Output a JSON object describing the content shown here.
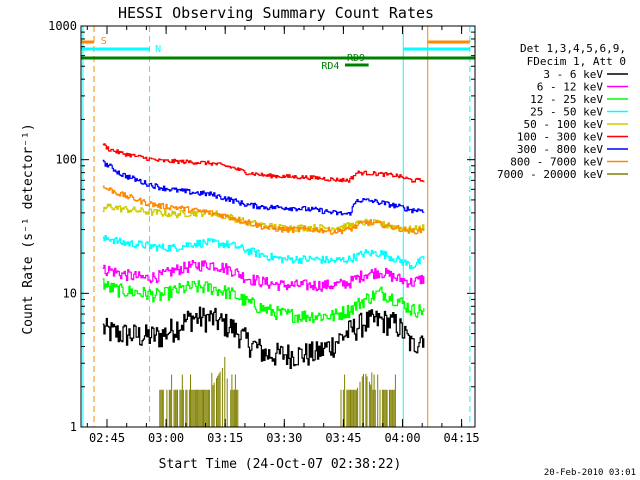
{
  "chart_data": {
    "type": "line",
    "title": "HESSI Observing Summary Count Rates",
    "xlabel": "Start Time (24-Oct-07 02:38:22)",
    "ylabel": "Count Rate (s⁻¹ detector⁻¹)",
    "yscale": "log",
    "ylim": [
      1,
      1000
    ],
    "xlim_minutes": [
      0,
      100
    ],
    "x_ticks": [
      {
        "label": "02:45",
        "minute": 6.6
      },
      {
        "label": "03:00",
        "minute": 21.6
      },
      {
        "label": "03:15",
        "minute": 36.6
      },
      {
        "label": "03:30",
        "minute": 51.6
      },
      {
        "label": "03:45",
        "minute": 66.6
      },
      {
        "label": "04:00",
        "minute": 81.6
      },
      {
        "label": "04:15",
        "minute": 96.6
      }
    ],
    "y_ticks": [
      "1",
      "10",
      "100",
      "1000"
    ],
    "legend_header": [
      "Det 1,3,4,5,6,9,",
      "FDecim 1, Att 0"
    ],
    "legend_position": "right",
    "series": [
      {
        "name": "3 - 6 keV",
        "color": "#000000",
        "x": [
          5.5,
          7,
          10,
          16,
          20,
          24,
          28,
          33,
          38,
          42,
          47,
          51,
          56,
          60,
          64,
          68,
          72,
          76,
          80,
          84,
          87
        ],
        "y": [
          5.5,
          5.2,
          5.0,
          4.8,
          4.8,
          5.6,
          6.6,
          6.5,
          5.6,
          4.4,
          3.5,
          3.5,
          3.5,
          3.6,
          4.2,
          5.2,
          6.1,
          6.3,
          5.9,
          4.0,
          5.0
        ]
      },
      {
        "name": "6 - 12 keV",
        "color": "#ff00ff",
        "x": [
          5.5,
          7,
          10,
          16,
          20,
          24,
          28,
          33,
          38,
          42,
          47,
          51,
          56,
          60,
          64,
          68,
          72,
          76,
          80,
          84,
          87
        ],
        "y": [
          15,
          15,
          14,
          13,
          13.5,
          15,
          16,
          16.5,
          15,
          13,
          12,
          11.5,
          11.5,
          11.5,
          11.5,
          12,
          14,
          14.5,
          13,
          12,
          13
        ]
      },
      {
        "name": "12 - 25 keV",
        "color": "#00ff00",
        "x": [
          5.5,
          7,
          10,
          16,
          20,
          24,
          28,
          33,
          38,
          42,
          47,
          51,
          56,
          60,
          64,
          68,
          72,
          76,
          80,
          84,
          87
        ],
        "y": [
          12,
          11,
          10.5,
          10,
          9.6,
          10.5,
          11.2,
          11,
          10,
          8.6,
          7.5,
          7.0,
          6.8,
          6.8,
          6.8,
          7.5,
          9.0,
          10.2,
          9.0,
          7.5,
          7.5
        ]
      },
      {
        "name": "25 - 50 keV",
        "color": "#00ffff",
        "x": [
          5.5,
          7,
          10,
          16,
          20,
          24,
          28,
          33,
          38,
          42,
          47,
          51,
          56,
          60,
          64,
          68,
          72,
          76,
          80,
          84,
          87
        ],
        "y": [
          25,
          26,
          24,
          23,
          22,
          22,
          23.5,
          24,
          23,
          21,
          19,
          18,
          18,
          18,
          17.5,
          18,
          20,
          20,
          18,
          16,
          18
        ]
      },
      {
        "name": "50 - 100 keV",
        "color": "#cccc00",
        "x": [
          5.5,
          7,
          10,
          16,
          20,
          24,
          28,
          33,
          38,
          42,
          47,
          51,
          56,
          60,
          64,
          68,
          72,
          76,
          80,
          84,
          87
        ],
        "y": [
          42,
          45,
          43,
          41,
          40,
          39,
          40,
          40,
          37,
          34,
          32,
          31,
          31,
          31,
          31,
          32,
          34,
          33,
          31,
          30,
          31
        ]
      },
      {
        "name": "100 - 300 keV",
        "color": "#ff0000",
        "x": [
          5.5,
          7,
          10,
          16,
          20,
          24,
          28,
          33,
          38,
          42,
          47,
          51,
          56,
          60,
          64,
          68,
          70,
          74,
          80,
          84,
          87
        ],
        "y": [
          130,
          120,
          112,
          103,
          98,
          97,
          96,
          94,
          88,
          80,
          76,
          75,
          74,
          73,
          71,
          70,
          80,
          79,
          76,
          70,
          70
        ]
      },
      {
        "name": "300 - 800 keV",
        "color": "#0000ff",
        "x": [
          5.5,
          7,
          10,
          16,
          20,
          24,
          28,
          33,
          38,
          42,
          47,
          51,
          56,
          60,
          64,
          68,
          70,
          74,
          80,
          84,
          87
        ],
        "y": [
          95,
          90,
          78,
          67,
          62,
          59,
          57,
          55,
          50,
          46,
          44,
          44,
          43,
          42,
          40,
          39,
          50,
          49,
          45,
          42,
          42
        ]
      },
      {
        "name": "800 - 7000 keV",
        "color": "#ff8800",
        "x": [
          5.5,
          7,
          10,
          16,
          20,
          24,
          28,
          33,
          38,
          42,
          47,
          51,
          56,
          60,
          64,
          68,
          72,
          76,
          80,
          84,
          87
        ],
        "y": [
          62,
          60,
          55,
          48,
          45,
          44,
          42,
          40,
          37,
          34,
          31,
          30,
          30,
          30,
          29,
          30,
          34,
          33,
          31,
          29,
          30
        ]
      },
      {
        "name": "7000 - 20000 keV",
        "color": "#808000",
        "x": [
          20,
          24,
          28,
          33,
          36,
          38,
          40,
          66,
          68,
          70,
          72,
          74,
          76,
          78,
          80
        ],
        "y": [
          1.9,
          1.9,
          1.9,
          1.9,
          2.8,
          1.9,
          1.9,
          1.9,
          1.9,
          1.9,
          2.6,
          1.9,
          1.9,
          1.9,
          1.9
        ]
      }
    ],
    "vertical_markers": [
      {
        "minute": 3.3,
        "color": "#ff8800",
        "style": "dashed"
      },
      {
        "minute": 17.4,
        "color": "#00ffff",
        "style": "dashed"
      },
      {
        "minute": 0.5,
        "color": "#00ffff",
        "style": "solid"
      },
      {
        "minute": 81.8,
        "color": "#00ffff",
        "style": "solid"
      },
      {
        "minute": 88.0,
        "color": "#ff8800",
        "style": "solid"
      },
      {
        "minute": 98.7,
        "color": "#00ffff",
        "style": "dashed"
      }
    ],
    "annotations": [
      {
        "label": "S",
        "color": "#ff8800"
      },
      {
        "label": "N",
        "color": "#00ffff"
      },
      {
        "label": "RD9",
        "color": "#008000"
      },
      {
        "label": "RD4",
        "color": "#008000"
      }
    ],
    "grid": false
  },
  "footer": {
    "timestamp": "20-Feb-2010 03:01"
  }
}
